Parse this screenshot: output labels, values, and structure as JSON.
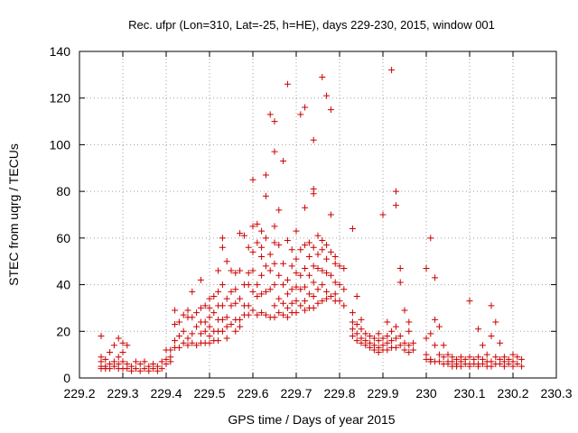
{
  "chart_data": {
    "type": "scatter",
    "title": "Rec. ufpr (Lon=310, Lat=-25, h=HE), days 229-230, 2015, window 001",
    "xlabel": "GPS time / Days of year 2015",
    "ylabel": "STEC from uqrg / TECUs",
    "xlim": [
      229.2,
      230.3
    ],
    "ylim": [
      0,
      140
    ],
    "x_ticks": [
      229.2,
      229.3,
      229.4,
      229.5,
      229.6,
      229.7,
      229.8,
      229.9,
      230,
      230.1,
      230.2,
      230.3
    ],
    "x_tick_labels": [
      "229.2",
      "229.3",
      "229.4",
      "229.5",
      "229.6",
      "229.7",
      "229.8",
      "229.9",
      "230",
      "230.1",
      "230.2",
      "230.3"
    ],
    "y_ticks": [
      0,
      20,
      40,
      60,
      80,
      100,
      120,
      140
    ],
    "y_tick_labels": [
      "0",
      "20",
      "40",
      "60",
      "80",
      "100",
      "120",
      "140"
    ],
    "grid": true,
    "marker": "+",
    "color": "#cc0000",
    "points": [
      [
        229.25,
        18
      ],
      [
        229.25,
        9
      ],
      [
        229.25,
        7
      ],
      [
        229.25,
        5
      ],
      [
        229.25,
        4
      ],
      [
        229.26,
        8
      ],
      [
        229.26,
        5
      ],
      [
        229.26,
        4
      ],
      [
        229.27,
        6
      ],
      [
        229.27,
        4
      ],
      [
        229.27,
        11
      ],
      [
        229.28,
        14
      ],
      [
        229.28,
        7
      ],
      [
        229.28,
        5
      ],
      [
        229.29,
        17
      ],
      [
        229.29,
        9
      ],
      [
        229.29,
        6
      ],
      [
        229.29,
        4
      ],
      [
        229.3,
        15
      ],
      [
        229.3,
        11
      ],
      [
        229.3,
        7
      ],
      [
        229.3,
        4
      ],
      [
        229.31,
        14
      ],
      [
        229.31,
        6
      ],
      [
        229.31,
        4
      ],
      [
        229.32,
        5
      ],
      [
        229.32,
        3
      ],
      [
        229.33,
        7
      ],
      [
        229.33,
        4
      ],
      [
        229.34,
        6
      ],
      [
        229.34,
        3
      ],
      [
        229.35,
        4
      ],
      [
        229.35,
        7
      ],
      [
        229.36,
        5
      ],
      [
        229.36,
        3
      ],
      [
        229.37,
        6
      ],
      [
        229.37,
        4
      ],
      [
        229.38,
        5
      ],
      [
        229.38,
        3
      ],
      [
        229.39,
        7
      ],
      [
        229.39,
        4
      ],
      [
        229.4,
        12
      ],
      [
        229.4,
        8
      ],
      [
        229.4,
        6
      ],
      [
        229.41,
        12
      ],
      [
        229.41,
        9
      ],
      [
        229.41,
        7
      ],
      [
        229.42,
        29
      ],
      [
        229.42,
        23
      ],
      [
        229.42,
        16
      ],
      [
        229.42,
        13
      ],
      [
        229.43,
        24
      ],
      [
        229.43,
        18
      ],
      [
        229.43,
        13
      ],
      [
        229.44,
        27
      ],
      [
        229.44,
        20
      ],
      [
        229.44,
        15
      ],
      [
        229.45,
        29
      ],
      [
        229.45,
        26
      ],
      [
        229.45,
        17
      ],
      [
        229.45,
        14
      ],
      [
        229.46,
        37
      ],
      [
        229.46,
        26
      ],
      [
        229.46,
        19
      ],
      [
        229.46,
        15
      ],
      [
        229.47,
        28
      ],
      [
        229.47,
        22
      ],
      [
        229.47,
        14
      ],
      [
        229.48,
        42
      ],
      [
        229.48,
        30
      ],
      [
        229.48,
        24
      ],
      [
        229.48,
        19
      ],
      [
        229.48,
        15
      ],
      [
        229.49,
        31
      ],
      [
        229.49,
        24
      ],
      [
        229.49,
        20
      ],
      [
        229.49,
        15
      ],
      [
        229.5,
        34
      ],
      [
        229.5,
        30
      ],
      [
        229.5,
        26
      ],
      [
        229.5,
        22
      ],
      [
        229.5,
        18
      ],
      [
        229.5,
        15
      ],
      [
        229.51,
        35
      ],
      [
        229.51,
        28
      ],
      [
        229.51,
        20
      ],
      [
        229.51,
        16
      ],
      [
        229.52,
        46
      ],
      [
        229.52,
        37
      ],
      [
        229.52,
        31
      ],
      [
        229.52,
        25
      ],
      [
        229.52,
        20
      ],
      [
        229.52,
        16
      ],
      [
        229.53,
        60
      ],
      [
        229.53,
        56
      ],
      [
        229.53,
        40
      ],
      [
        229.53,
        31
      ],
      [
        229.53,
        25
      ],
      [
        229.53,
        20
      ],
      [
        229.54,
        50
      ],
      [
        229.54,
        34
      ],
      [
        229.54,
        26
      ],
      [
        229.54,
        22
      ],
      [
        229.54,
        17
      ],
      [
        229.55,
        46
      ],
      [
        229.55,
        37
      ],
      [
        229.55,
        31
      ],
      [
        229.55,
        23
      ],
      [
        229.56,
        45
      ],
      [
        229.56,
        38
      ],
      [
        229.56,
        32
      ],
      [
        229.56,
        25
      ],
      [
        229.56,
        20
      ],
      [
        229.57,
        62
      ],
      [
        229.57,
        46
      ],
      [
        229.57,
        34
      ],
      [
        229.57,
        25
      ],
      [
        229.57,
        22
      ],
      [
        229.58,
        61
      ],
      [
        229.58,
        40
      ],
      [
        229.58,
        31
      ],
      [
        229.58,
        27
      ],
      [
        229.59,
        56
      ],
      [
        229.59,
        45
      ],
      [
        229.59,
        40
      ],
      [
        229.59,
        31
      ],
      [
        229.59,
        27
      ],
      [
        229.6,
        85
      ],
      [
        229.6,
        65
      ],
      [
        229.6,
        54
      ],
      [
        229.6,
        46
      ],
      [
        229.6,
        37
      ],
      [
        229.6,
        29
      ],
      [
        229.61,
        66
      ],
      [
        229.61,
        58
      ],
      [
        229.61,
        40
      ],
      [
        229.61,
        35
      ],
      [
        229.61,
        27
      ],
      [
        229.62,
        63
      ],
      [
        229.62,
        56
      ],
      [
        229.62,
        52
      ],
      [
        229.62,
        44
      ],
      [
        229.62,
        36
      ],
      [
        229.62,
        28
      ],
      [
        229.63,
        78
      ],
      [
        229.63,
        87
      ],
      [
        229.63,
        60
      ],
      [
        229.63,
        48
      ],
      [
        229.63,
        37
      ],
      [
        229.63,
        27
      ],
      [
        229.64,
        113
      ],
      [
        229.64,
        53
      ],
      [
        229.64,
        46
      ],
      [
        229.64,
        38
      ],
      [
        229.64,
        26
      ],
      [
        229.65,
        110
      ],
      [
        229.65,
        97
      ],
      [
        229.65,
        65
      ],
      [
        229.65,
        58
      ],
      [
        229.65,
        49
      ],
      [
        229.65,
        40
      ],
      [
        229.65,
        31
      ],
      [
        229.65,
        26
      ],
      [
        229.66,
        72
      ],
      [
        229.66,
        57
      ],
      [
        229.66,
        44
      ],
      [
        229.66,
        34
      ],
      [
        229.66,
        28
      ],
      [
        229.67,
        93
      ],
      [
        229.67,
        49
      ],
      [
        229.67,
        40
      ],
      [
        229.67,
        32
      ],
      [
        229.67,
        27
      ],
      [
        229.68,
        126
      ],
      [
        229.68,
        59
      ],
      [
        229.68,
        42
      ],
      [
        229.68,
        36
      ],
      [
        229.68,
        30
      ],
      [
        229.68,
        26
      ],
      [
        229.69,
        55
      ],
      [
        229.69,
        48
      ],
      [
        229.69,
        38
      ],
      [
        229.69,
        32
      ],
      [
        229.69,
        28
      ],
      [
        229.7,
        63
      ],
      [
        229.7,
        51
      ],
      [
        229.7,
        45
      ],
      [
        229.7,
        39
      ],
      [
        229.7,
        33
      ],
      [
        229.7,
        28
      ],
      [
        229.71,
        113
      ],
      [
        229.71,
        55
      ],
      [
        229.71,
        44
      ],
      [
        229.71,
        38
      ],
      [
        229.71,
        31
      ],
      [
        229.72,
        116
      ],
      [
        229.72,
        73
      ],
      [
        229.72,
        57
      ],
      [
        229.72,
        47
      ],
      [
        229.72,
        39
      ],
      [
        229.72,
        33
      ],
      [
        229.72,
        29
      ],
      [
        229.73,
        58
      ],
      [
        229.73,
        52
      ],
      [
        229.73,
        44
      ],
      [
        229.73,
        36
      ],
      [
        229.73,
        30
      ],
      [
        229.74,
        102
      ],
      [
        229.74,
        81
      ],
      [
        229.74,
        79
      ],
      [
        229.74,
        56
      ],
      [
        229.74,
        48
      ],
      [
        229.74,
        41
      ],
      [
        229.74,
        35
      ],
      [
        229.74,
        30
      ],
      [
        229.75,
        61
      ],
      [
        229.75,
        53
      ],
      [
        229.75,
        47
      ],
      [
        229.75,
        38
      ],
      [
        229.75,
        32
      ],
      [
        229.76,
        129
      ],
      [
        229.76,
        59
      ],
      [
        229.76,
        55
      ],
      [
        229.76,
        46
      ],
      [
        229.76,
        40
      ],
      [
        229.76,
        33
      ],
      [
        229.77,
        121
      ],
      [
        229.77,
        57
      ],
      [
        229.77,
        51
      ],
      [
        229.77,
        45
      ],
      [
        229.77,
        37
      ],
      [
        229.77,
        34
      ],
      [
        229.78,
        115
      ],
      [
        229.78,
        70
      ],
      [
        229.78,
        54
      ],
      [
        229.78,
        44
      ],
      [
        229.78,
        35
      ],
      [
        229.79,
        52
      ],
      [
        229.79,
        49
      ],
      [
        229.79,
        41
      ],
      [
        229.79,
        36
      ],
      [
        229.79,
        33
      ],
      [
        229.8,
        48
      ],
      [
        229.8,
        40
      ],
      [
        229.8,
        33
      ],
      [
        229.81,
        47
      ],
      [
        229.81,
        38
      ],
      [
        229.81,
        31
      ],
      [
        229.83,
        64
      ],
      [
        229.83,
        28
      ],
      [
        229.83,
        24
      ],
      [
        229.83,
        21
      ],
      [
        229.83,
        18
      ],
      [
        229.84,
        35
      ],
      [
        229.84,
        23
      ],
      [
        229.84,
        19
      ],
      [
        229.84,
        16
      ],
      [
        229.85,
        25
      ],
      [
        229.85,
        21
      ],
      [
        229.85,
        17
      ],
      [
        229.85,
        15
      ],
      [
        229.86,
        19
      ],
      [
        229.86,
        16
      ],
      [
        229.86,
        14
      ],
      [
        229.87,
        18
      ],
      [
        229.87,
        15
      ],
      [
        229.87,
        13
      ],
      [
        229.88,
        17
      ],
      [
        229.88,
        14
      ],
      [
        229.88,
        12
      ],
      [
        229.89,
        19
      ],
      [
        229.89,
        16
      ],
      [
        229.89,
        13
      ],
      [
        229.89,
        11
      ],
      [
        229.9,
        70
      ],
      [
        229.9,
        17
      ],
      [
        229.9,
        14
      ],
      [
        229.9,
        12
      ],
      [
        229.91,
        24
      ],
      [
        229.91,
        18
      ],
      [
        229.91,
        15
      ],
      [
        229.91,
        12
      ],
      [
        229.92,
        132
      ],
      [
        229.92,
        20
      ],
      [
        229.92,
        16
      ],
      [
        229.92,
        13
      ],
      [
        229.93,
        80
      ],
      [
        229.93,
        74
      ],
      [
        229.93,
        22
      ],
      [
        229.93,
        17
      ],
      [
        229.93,
        13
      ],
      [
        229.94,
        47
      ],
      [
        229.94,
        41
      ],
      [
        229.94,
        18
      ],
      [
        229.94,
        14
      ],
      [
        229.95,
        29
      ],
      [
        229.95,
        15
      ],
      [
        229.95,
        12
      ],
      [
        229.96,
        24
      ],
      [
        229.96,
        20
      ],
      [
        229.96,
        14
      ],
      [
        229.96,
        11
      ],
      [
        229.97,
        15
      ],
      [
        229.97,
        12
      ],
      [
        230.0,
        47
      ],
      [
        230.0,
        17
      ],
      [
        230.0,
        10
      ],
      [
        230.0,
        8
      ],
      [
        230.01,
        60
      ],
      [
        230.01,
        19
      ],
      [
        230.01,
        8
      ],
      [
        230.01,
        7
      ],
      [
        230.02,
        43
      ],
      [
        230.02,
        25
      ],
      [
        230.02,
        14
      ],
      [
        230.02,
        7
      ],
      [
        230.03,
        22
      ],
      [
        230.03,
        10
      ],
      [
        230.03,
        7
      ],
      [
        230.04,
        14
      ],
      [
        230.04,
        9
      ],
      [
        230.04,
        6
      ],
      [
        230.05,
        10
      ],
      [
        230.05,
        7
      ],
      [
        230.05,
        6
      ],
      [
        230.06,
        9
      ],
      [
        230.06,
        7
      ],
      [
        230.06,
        5
      ],
      [
        230.07,
        8
      ],
      [
        230.07,
        6
      ],
      [
        230.07,
        5
      ],
      [
        230.08,
        9
      ],
      [
        230.08,
        7
      ],
      [
        230.08,
        5
      ],
      [
        230.09,
        8
      ],
      [
        230.09,
        6
      ],
      [
        230.1,
        33
      ],
      [
        230.1,
        9
      ],
      [
        230.1,
        6
      ],
      [
        230.1,
        5
      ],
      [
        230.11,
        8
      ],
      [
        230.11,
        6
      ],
      [
        230.12,
        21
      ],
      [
        230.12,
        9
      ],
      [
        230.12,
        6
      ],
      [
        230.12,
        5
      ],
      [
        230.13,
        14
      ],
      [
        230.13,
        8
      ],
      [
        230.13,
        6
      ],
      [
        230.14,
        10
      ],
      [
        230.14,
        7
      ],
      [
        230.14,
        5
      ],
      [
        230.15,
        31
      ],
      [
        230.15,
        18
      ],
      [
        230.15,
        7
      ],
      [
        230.15,
        5
      ],
      [
        230.16,
        24
      ],
      [
        230.16,
        9
      ],
      [
        230.16,
        6
      ],
      [
        230.17,
        15
      ],
      [
        230.17,
        8
      ],
      [
        230.17,
        6
      ],
      [
        230.18,
        9
      ],
      [
        230.18,
        7
      ],
      [
        230.18,
        5
      ],
      [
        230.19,
        8
      ],
      [
        230.19,
        6
      ],
      [
        230.2,
        10
      ],
      [
        230.2,
        7
      ],
      [
        230.2,
        5
      ],
      [
        230.21,
        9
      ],
      [
        230.21,
        6
      ],
      [
        230.22,
        8
      ],
      [
        230.22,
        5
      ]
    ]
  }
}
